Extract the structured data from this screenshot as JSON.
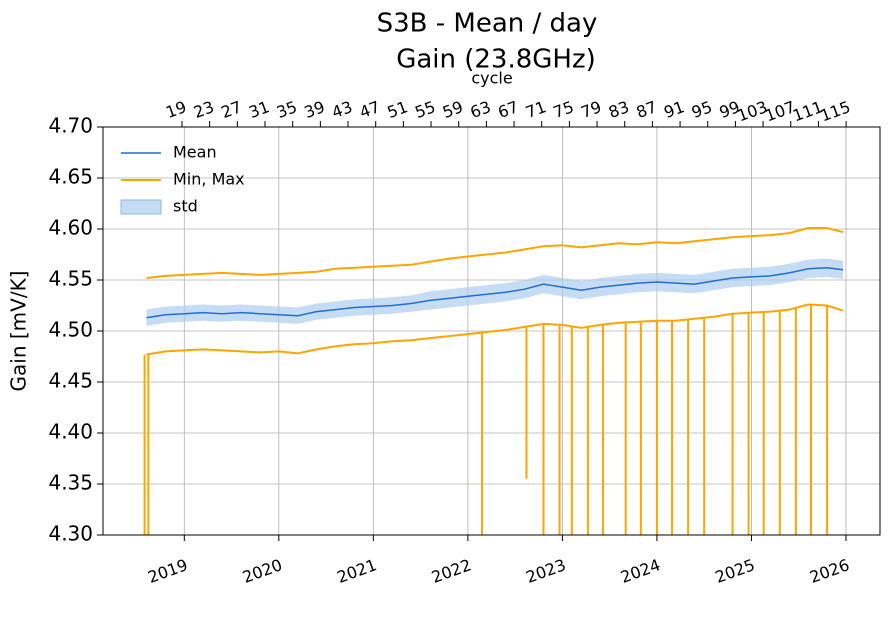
{
  "chart_data": {
    "type": "line",
    "title": "S3B - Mean / day",
    "subtitle": "Gain (23.8GHz)",
    "ylabel": "Gain [mV/K]",
    "x2label": "cycle",
    "x": [
      2018.6,
      2018.8,
      2019.0,
      2019.2,
      2019.4,
      2019.6,
      2019.8,
      2020.0,
      2020.2,
      2020.4,
      2020.6,
      2020.8,
      2021.0,
      2021.2,
      2021.4,
      2021.6,
      2021.8,
      2022.0,
      2022.2,
      2022.4,
      2022.6,
      2022.8,
      2023.0,
      2023.2,
      2023.4,
      2023.6,
      2023.8,
      2024.0,
      2024.2,
      2024.4,
      2024.6,
      2024.8,
      2025.0,
      2025.2,
      2025.4,
      2025.6,
      2025.8,
      2025.97
    ],
    "series": [
      {
        "name": "Mean",
        "color": "#1f6fd1",
        "values": [
          4.513,
          4.516,
          4.517,
          4.518,
          4.517,
          4.518,
          4.517,
          4.516,
          4.515,
          4.519,
          4.521,
          4.523,
          4.524,
          4.525,
          4.527,
          4.53,
          4.532,
          4.534,
          4.536,
          4.538,
          4.541,
          4.546,
          4.543,
          4.54,
          4.543,
          4.545,
          4.547,
          4.548,
          4.547,
          4.546,
          4.549,
          4.552,
          4.553,
          4.554,
          4.557,
          4.561,
          4.562,
          4.56
        ],
        "band": {
          "name": "std",
          "color": "#aecdf0",
          "values": [
            0.008,
            0.008,
            0.008,
            0.008,
            0.008,
            0.008,
            0.008,
            0.008,
            0.008,
            0.008,
            0.008,
            0.008,
            0.008,
            0.008,
            0.008,
            0.009,
            0.009,
            0.009,
            0.009,
            0.009,
            0.009,
            0.009,
            0.009,
            0.009,
            0.009,
            0.009,
            0.009,
            0.009,
            0.009,
            0.009,
            0.009,
            0.009,
            0.009,
            0.009,
            0.009,
            0.009,
            0.009,
            0.009
          ]
        }
      },
      {
        "name": "Min, Max",
        "color": "#ffa500",
        "max": [
          4.552,
          4.554,
          4.555,
          4.556,
          4.557,
          4.556,
          4.555,
          4.556,
          4.557,
          4.558,
          4.561,
          4.562,
          4.563,
          4.564,
          4.565,
          4.568,
          4.571,
          4.573,
          4.575,
          4.577,
          4.58,
          4.583,
          4.584,
          4.582,
          4.584,
          4.586,
          4.585,
          4.587,
          4.586,
          4.588,
          4.59,
          4.592,
          4.593,
          4.594,
          4.596,
          4.601,
          4.601,
          4.597
        ],
        "min": [
          4.477,
          4.48,
          4.481,
          4.482,
          4.481,
          4.48,
          4.479,
          4.48,
          4.478,
          4.482,
          4.485,
          4.487,
          4.488,
          4.49,
          4.491,
          4.493,
          4.495,
          4.497,
          4.499,
          4.501,
          4.504,
          4.507,
          4.506,
          4.503,
          4.506,
          4.508,
          4.509,
          4.51,
          4.51,
          4.512,
          4.514,
          4.517,
          4.518,
          4.519,
          4.521,
          4.526,
          4.525,
          4.52
        ],
        "drops": {
          "x": [
            2018.58,
            2018.62,
            2022.15,
            2022.62,
            2022.8,
            2022.97,
            2023.1,
            2023.27,
            2023.43,
            2023.67,
            2023.83,
            2024.0,
            2024.16,
            2024.33,
            2024.5,
            2024.8,
            2024.97,
            2025.13,
            2025.3,
            2025.47,
            2025.63,
            2025.8
          ],
          "values": [
            4.29,
            4.29,
            4.29,
            4.355,
            4.29,
            4.29,
            4.29,
            4.29,
            4.29,
            4.29,
            4.29,
            4.29,
            4.29,
            4.29,
            4.29,
            4.29,
            4.29,
            4.29,
            4.29,
            4.29,
            4.29,
            4.29
          ]
        }
      }
    ],
    "xlim": [
      2018.14,
      2026.36
    ],
    "xticks": [
      2019,
      2020,
      2021,
      2022,
      2023,
      2024,
      2025,
      2026
    ],
    "x2lim": [
      7.58,
      119.9
    ],
    "x2ticks": [
      19,
      23,
      27,
      31,
      35,
      39,
      43,
      47,
      51,
      55,
      59,
      63,
      67,
      71,
      75,
      79,
      83,
      87,
      91,
      95,
      99,
      103,
      107,
      111,
      115
    ],
    "ylim": [
      4.3,
      4.7
    ],
    "yticks": [
      {
        "value": 4.3,
        "label": "4.30"
      },
      {
        "value": 4.35,
        "label": "4.35"
      },
      {
        "value": 4.4,
        "label": "4.40"
      },
      {
        "value": 4.45,
        "label": "4.45"
      },
      {
        "value": 4.5,
        "label": "4.50"
      },
      {
        "value": 4.55,
        "label": "4.55"
      },
      {
        "value": 4.6,
        "label": "4.60"
      },
      {
        "value": 4.65,
        "label": "4.65"
      },
      {
        "value": 4.7,
        "label": "4.70"
      }
    ],
    "grid": true,
    "legend": "upper left"
  }
}
